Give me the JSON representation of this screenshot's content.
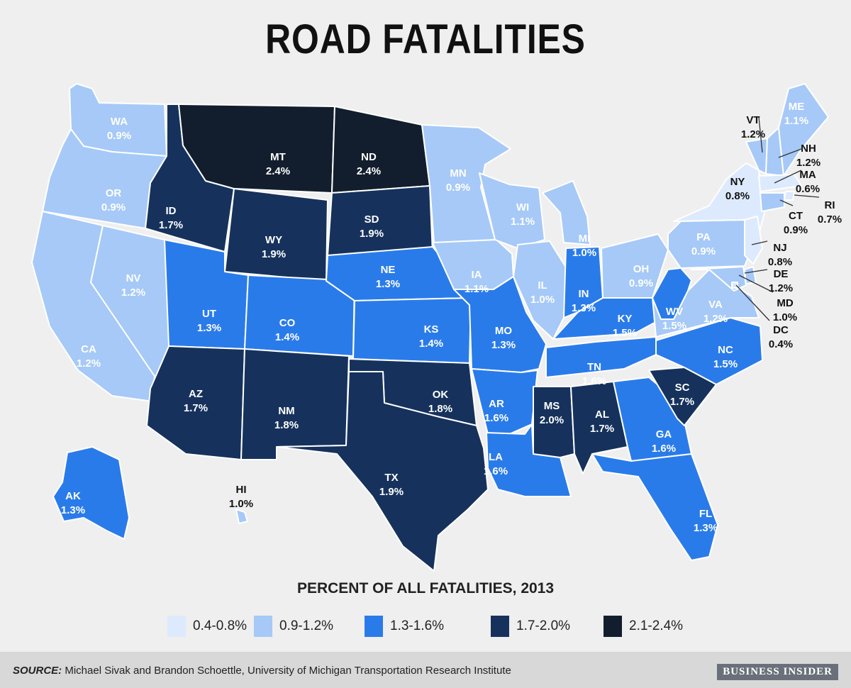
{
  "title": "ROAD FATALITIES",
  "legend": {
    "title": "PERCENT OF ALL FATALITIES, 2013",
    "bins": [
      {
        "label": "0.4-0.8%",
        "color": "#ddeafd"
      },
      {
        "label": "0.9-1.2%",
        "color": "#a6c9f7"
      },
      {
        "label": "1.3-1.6%",
        "color": "#2a7bea"
      },
      {
        "label": "1.7-2.0%",
        "color": "#16325c"
      },
      {
        "label": "2.1-2.4%",
        "color": "#121e2d"
      }
    ]
  },
  "states": [
    {
      "abbr": "WA",
      "value": "0.9%"
    },
    {
      "abbr": "OR",
      "value": "0.9%"
    },
    {
      "abbr": "CA",
      "value": "1.2%"
    },
    {
      "abbr": "NV",
      "value": "1.2%"
    },
    {
      "abbr": "ID",
      "value": "1.7%"
    },
    {
      "abbr": "MT",
      "value": "2.4%"
    },
    {
      "abbr": "WY",
      "value": "1.9%"
    },
    {
      "abbr": "UT",
      "value": "1.3%"
    },
    {
      "abbr": "AZ",
      "value": "1.7%"
    },
    {
      "abbr": "CO",
      "value": "1.4%"
    },
    {
      "abbr": "NM",
      "value": "1.8%"
    },
    {
      "abbr": "ND",
      "value": "2.4%"
    },
    {
      "abbr": "SD",
      "value": "1.9%"
    },
    {
      "abbr": "NE",
      "value": "1.3%"
    },
    {
      "abbr": "KS",
      "value": "1.4%"
    },
    {
      "abbr": "OK",
      "value": "1.8%"
    },
    {
      "abbr": "TX",
      "value": "1.9%"
    },
    {
      "abbr": "MN",
      "value": "0.9%"
    },
    {
      "abbr": "IA",
      "value": "1.1%"
    },
    {
      "abbr": "MO",
      "value": "1.3%"
    },
    {
      "abbr": "AR",
      "value": "1.6%"
    },
    {
      "abbr": "LA",
      "value": "1.6%"
    },
    {
      "abbr": "WI",
      "value": "1.1%"
    },
    {
      "abbr": "IL",
      "value": "1.0%"
    },
    {
      "abbr": "MI",
      "value": "1.0%"
    },
    {
      "abbr": "IN",
      "value": "1.3%"
    },
    {
      "abbr": "OH",
      "value": "0.9%"
    },
    {
      "abbr": "KY",
      "value": "1.5%"
    },
    {
      "abbr": "TN",
      "value": "1.6%"
    },
    {
      "abbr": "MS",
      "value": "2.0%"
    },
    {
      "abbr": "AL",
      "value": "1.7%"
    },
    {
      "abbr": "GA",
      "value": "1.6%"
    },
    {
      "abbr": "FL",
      "value": "1.3%"
    },
    {
      "abbr": "SC",
      "value": "1.7%"
    },
    {
      "abbr": "NC",
      "value": "1.5%"
    },
    {
      "abbr": "VA",
      "value": "1.2%"
    },
    {
      "abbr": "WV",
      "value": "1.5%"
    },
    {
      "abbr": "PA",
      "value": "0.9%"
    },
    {
      "abbr": "NY",
      "value": "0.8%"
    },
    {
      "abbr": "VT",
      "value": "1.2%"
    },
    {
      "abbr": "NH",
      "value": "1.2%"
    },
    {
      "abbr": "ME",
      "value": "1.1%"
    },
    {
      "abbr": "MA",
      "value": "0.6%"
    },
    {
      "abbr": "RI",
      "value": "0.7%"
    },
    {
      "abbr": "CT",
      "value": "0.9%"
    },
    {
      "abbr": "NJ",
      "value": "0.8%"
    },
    {
      "abbr": "DE",
      "value": "1.2%"
    },
    {
      "abbr": "MD",
      "value": "1.0%"
    },
    {
      "abbr": "DC",
      "value": "0.4%"
    },
    {
      "abbr": "AK",
      "value": "1.3%"
    },
    {
      "abbr": "HI",
      "value": "1.0%"
    }
  ],
  "footer": {
    "source_label": "SOURCE:",
    "source_text": " Michael Sivak and Brandon Schoettle, University of Michigan Transportation Research Institute",
    "brand": "BUSINESS INSIDER"
  }
}
